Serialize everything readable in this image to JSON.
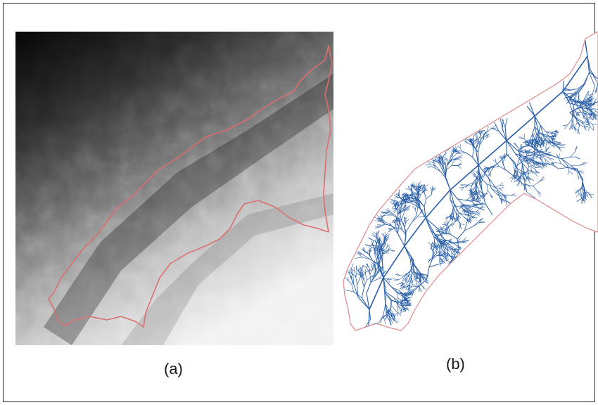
{
  "figure": {
    "panel_a": {
      "caption": "(a)"
    },
    "panel_b": {
      "caption": "(b)"
    }
  },
  "colors": {
    "boundary": "#d9706f",
    "streams": "#2a5fa8",
    "dem_dark": "#0a0a0a",
    "dem_light": "#ffffff"
  }
}
